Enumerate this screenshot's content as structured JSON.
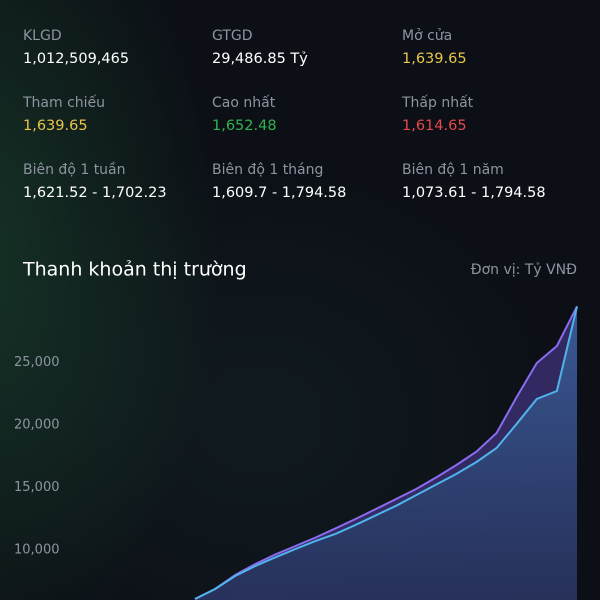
{
  "stats": [
    {
      "label": "KLGD",
      "value": "1,012,509,465",
      "color": "#ffffff"
    },
    {
      "label": "GTGD",
      "value": "29,486.85 Tỷ",
      "color": "#ffffff"
    },
    {
      "label": "Mở cửa",
      "value": "1,639.65",
      "color": "#e9c54a"
    },
    {
      "label": "Tham chiếu",
      "value": "1,639.65",
      "color": "#e9c54a"
    },
    {
      "label": "Cao nhất",
      "value": "1,652.48",
      "color": "#2fb350"
    },
    {
      "label": "Thấp nhất",
      "value": "1,614.65",
      "color": "#e5484d"
    },
    {
      "label": "Biên độ 1 tuần",
      "value": "1,621.52 - 1,702.23",
      "color": "#ffffff"
    },
    {
      "label": "Biên độ 1 tháng",
      "value": "1,609.7 - 1,794.58",
      "color": "#ffffff"
    },
    {
      "label": "Biên độ 1 năm",
      "value": "1,073.61 - 1,794.58",
      "color": "#ffffff"
    }
  ],
  "chart_data": {
    "type": "area",
    "title": "Thanh khoản thị trường",
    "unit": "Đơn vị: Tỷ VNĐ",
    "ylim": [
      6000,
      30000
    ],
    "yticks": [
      {
        "value": 10000,
        "label": "10,000"
      },
      {
        "value": 15000,
        "label": "15,000"
      },
      {
        "value": 20000,
        "label": "20,000"
      },
      {
        "value": 25000,
        "label": "25,000"
      }
    ],
    "series": [
      {
        "color": "#8a6cf0",
        "values": [
          6080,
          6880,
          8000,
          8880,
          9650,
          10320,
          11000,
          11740,
          12490,
          13280,
          14080,
          14880,
          15810,
          16800,
          17870,
          19360,
          22240,
          24960,
          26320,
          29490
        ]
      },
      {
        "color": "#4fb4ec",
        "values": [
          6080,
          6880,
          7920,
          8720,
          9420,
          10080,
          10730,
          11300,
          12020,
          12780,
          13540,
          14390,
          15240,
          16090,
          17040,
          18160,
          20100,
          22080,
          22720,
          29490
        ]
      }
    ]
  }
}
